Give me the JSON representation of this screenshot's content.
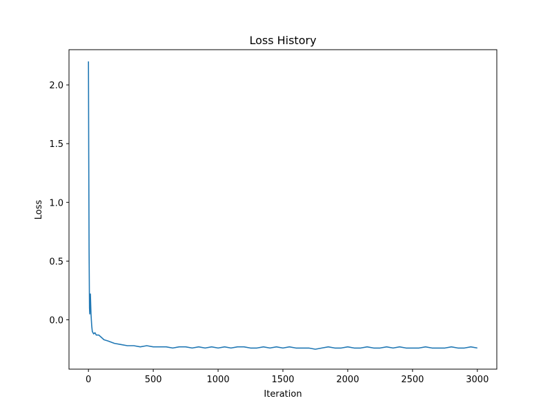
{
  "chart_data": {
    "type": "line",
    "title": "Loss History",
    "xlabel": "Iteration",
    "ylabel": "Loss",
    "xlim": [
      -150,
      3150
    ],
    "ylim": [
      -0.42,
      2.3
    ],
    "xticks": [
      0,
      500,
      1000,
      1500,
      2000,
      2500,
      3000
    ],
    "xtick_labels": [
      "0",
      "500",
      "1000",
      "1500",
      "2000",
      "2500",
      "3000"
    ],
    "yticks": [
      0.0,
      0.5,
      1.0,
      1.5,
      2.0
    ],
    "ytick_labels": [
      "0.0",
      "0.5",
      "1.0",
      "1.5",
      "2.0"
    ],
    "grid": false,
    "series": [
      {
        "color": "#1f77b4",
        "x": [
          0,
          2,
          5,
          8,
          10,
          15,
          20,
          25,
          30,
          40,
          50,
          60,
          80,
          100,
          120,
          150,
          200,
          250,
          300,
          350,
          400,
          450,
          500,
          550,
          600,
          650,
          700,
          750,
          800,
          850,
          900,
          950,
          1000,
          1050,
          1100,
          1150,
          1200,
          1250,
          1300,
          1350,
          1400,
          1450,
          1500,
          1550,
          1600,
          1650,
          1700,
          1750,
          1800,
          1850,
          1900,
          1950,
          2000,
          2050,
          2100,
          2150,
          2200,
          2250,
          2300,
          2350,
          2400,
          2450,
          2500,
          2550,
          2600,
          2650,
          2700,
          2750,
          2800,
          2850,
          2900,
          2950,
          3000
        ],
        "values": [
          2.2,
          1.4,
          0.6,
          0.1,
          0.05,
          0.22,
          0.05,
          -0.05,
          -0.1,
          -0.12,
          -0.11,
          -0.13,
          -0.13,
          -0.15,
          -0.17,
          -0.18,
          -0.2,
          -0.21,
          -0.22,
          -0.22,
          -0.23,
          -0.22,
          -0.23,
          -0.23,
          -0.23,
          -0.24,
          -0.23,
          -0.23,
          -0.24,
          -0.23,
          -0.24,
          -0.23,
          -0.24,
          -0.23,
          -0.24,
          -0.23,
          -0.23,
          -0.24,
          -0.24,
          -0.23,
          -0.24,
          -0.23,
          -0.24,
          -0.23,
          -0.24,
          -0.24,
          -0.24,
          -0.25,
          -0.24,
          -0.23,
          -0.24,
          -0.24,
          -0.23,
          -0.24,
          -0.24,
          -0.23,
          -0.24,
          -0.24,
          -0.23,
          -0.24,
          -0.23,
          -0.24,
          -0.24,
          -0.24,
          -0.23,
          -0.24,
          -0.24,
          -0.24,
          -0.23,
          -0.24,
          -0.24,
          -0.23,
          -0.24
        ]
      }
    ]
  }
}
